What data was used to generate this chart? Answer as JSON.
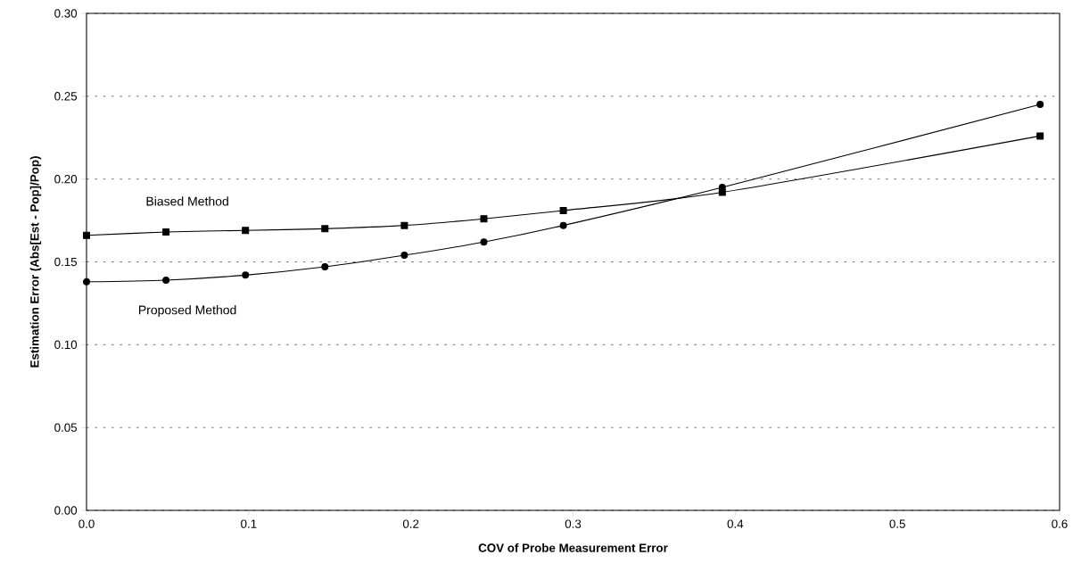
{
  "chart_data": {
    "type": "line",
    "xlabel": "COV of Probe Measurement Error",
    "ylabel": "Estimation Error (Abs[Est - Pop]/Pop)",
    "x": [
      0,
      0.049,
      0.098,
      0.147,
      0.196,
      0.245,
      0.294,
      0.392,
      0.588
    ],
    "series": [
      {
        "name": "Biased Method",
        "color": "#000000",
        "marker": "square",
        "values": [
          0.166,
          0.168,
          0.169,
          0.17,
          0.172,
          0.176,
          0.181,
          0.192,
          0.226
        ]
      },
      {
        "name": "Proposed  Method",
        "color": "#000000",
        "marker": "circle",
        "values": [
          0.138,
          0.139,
          0.142,
          0.147,
          0.154,
          0.162,
          0.172,
          0.195,
          0.245
        ]
      }
    ],
    "xlim": [
      0,
      0.6
    ],
    "ylim": [
      0,
      0.3
    ],
    "xticks": [
      {
        "value": 0,
        "label": "0.0"
      },
      0.1,
      0.2,
      0.3,
      0.4,
      0.5,
      {
        "value": 0.6,
        "label": "0.6"
      }
    ],
    "yticks": [
      {
        "value": 0,
        "label": "0.00"
      },
      0.05,
      {
        "value": 0.1,
        "label": "0.10"
      },
      0.15,
      {
        "value": 0.2,
        "label": "0.20"
      },
      0.25,
      {
        "value": 0.3,
        "label": "0.30"
      }
    ],
    "grid": "y",
    "legend": false,
    "line_style": "solid"
  }
}
